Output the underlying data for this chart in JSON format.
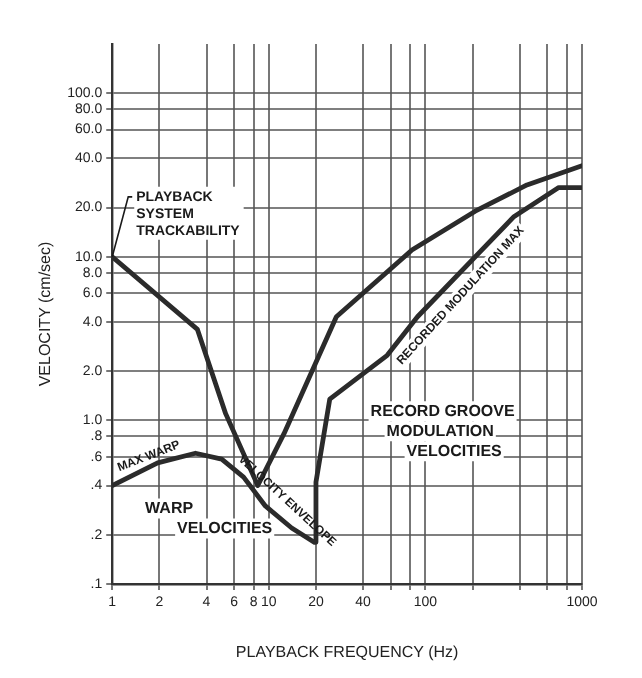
{
  "chart_data": {
    "type": "line",
    "xlabel": "PLAYBACK FREQUENCY (Hz)",
    "ylabel": "VELOCITY (cm/sec)",
    "log": "xy",
    "grid": true,
    "marker": "none",
    "line_style": "solid",
    "xlim": [
      1,
      1000
    ],
    "ylim": [
      0.1,
      200
    ],
    "xticks": [
      1,
      2,
      4,
      6,
      8,
      10,
      20,
      40,
      {
        "value": 60,
        "label": null
      },
      {
        "value": 80,
        "label": null
      },
      100,
      {
        "value": 200,
        "label": null
      },
      {
        "value": 400,
        "label": null
      },
      {
        "value": 600,
        "label": null
      },
      {
        "value": 800,
        "label": null
      },
      1000
    ],
    "yticks": [
      {
        "value": 0.1,
        "label": ".1"
      },
      {
        "value": 0.2,
        "label": ".2"
      },
      {
        "value": 0.4,
        "label": ".4"
      },
      {
        "value": 0.6,
        "label": ".6"
      },
      {
        "value": 0.8,
        "label": ".8"
      },
      {
        "value": 1,
        "label": "1.0"
      },
      {
        "value": 2,
        "label": "2.0"
      },
      {
        "value": 4,
        "label": "4.0"
      },
      {
        "value": 6,
        "label": "6.0"
      },
      {
        "value": 8,
        "label": "8.0"
      },
      {
        "value": 10,
        "label": "10.0"
      },
      {
        "value": 20,
        "label": "20.0"
      },
      {
        "value": 40,
        "label": "40.0"
      },
      {
        "value": 60,
        "label": "60.0"
      },
      {
        "value": 80,
        "label": "80.0"
      },
      {
        "value": 100,
        "label": "100.0"
      }
    ],
    "series": [
      {
        "name": "PLAYBACK SYSTEM TRACKABILITY",
        "color": "#2b2b2b",
        "x": [
          1,
          3.5,
          5.3,
          8.5,
          12.5,
          27,
          82,
          208,
          445,
          1000
        ],
        "values": [
          10,
          3.6,
          1.1,
          0.4,
          0.83,
          4.3,
          11,
          19,
          27.5,
          36
        ]
      },
      {
        "name": "MAX WARP VELOCITY ENVELOPE",
        "color": "#2b2b2b",
        "x": [
          1,
          1.95,
          3.4,
          5,
          6.9,
          9.5,
          14,
          19.5,
          20
        ],
        "values": [
          0.4,
          0.55,
          0.63,
          0.58,
          0.45,
          0.3,
          0.22,
          0.18,
          0.18
        ]
      },
      {
        "name": "RECORDED MODULATION MAX",
        "color": "#2b2b2b",
        "x": [
          20,
          20,
          24.5,
          57,
          89,
          365,
          710,
          1000
        ],
        "values": [
          0.18,
          0.42,
          1.35,
          2.5,
          4.3,
          17.5,
          26.5,
          26.5
        ]
      }
    ],
    "annotations": [
      "WARP VELOCITIES",
      "RECORD GROOVE MODULATION VELOCITIES"
    ]
  }
}
